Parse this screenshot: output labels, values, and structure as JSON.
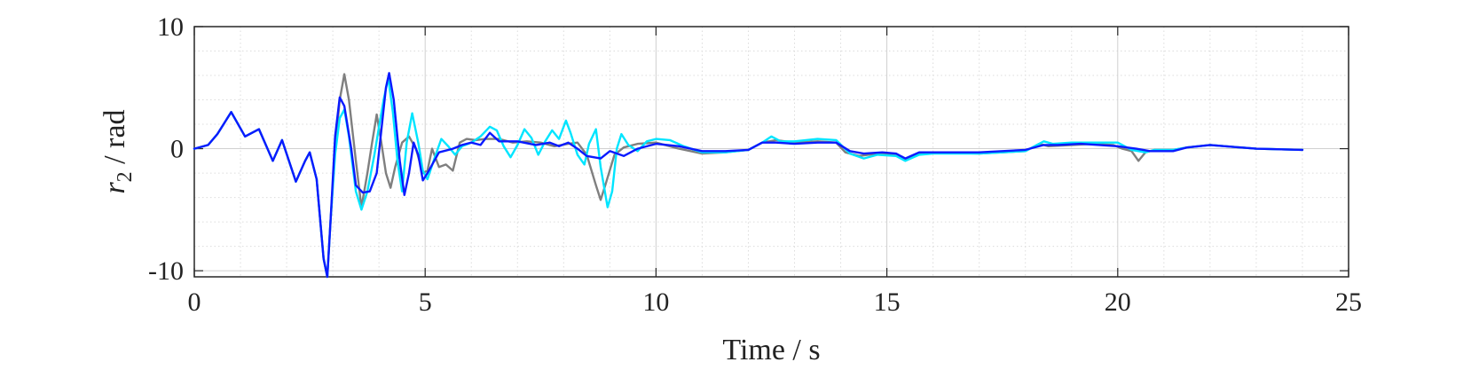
{
  "chart_data": {
    "type": "line",
    "xlabel": "Time / s",
    "ylabel": {
      "symbol": "r",
      "subscript": "2",
      "unit": " / rad"
    },
    "xlim": [
      0,
      25
    ],
    "ylim": [
      -10.5,
      10
    ],
    "xticks": [
      0,
      5,
      10,
      15,
      20,
      25
    ],
    "xtick_labels": [
      "0",
      "5",
      "10",
      "15",
      "20",
      "25"
    ],
    "yticks": [
      -10,
      0,
      10
    ],
    "ytick_labels": [
      "-10",
      "0",
      "10"
    ],
    "grid": true,
    "minor_grid": true,
    "series": [
      {
        "color": "#7f7f7f",
        "points": [
          [
            0,
            0
          ],
          [
            0.3,
            0.3
          ],
          [
            0.5,
            1.2
          ],
          [
            0.8,
            3.0
          ],
          [
            1.1,
            1.0
          ],
          [
            1.4,
            1.6
          ],
          [
            1.7,
            -1.0
          ],
          [
            1.9,
            0.7
          ],
          [
            2.2,
            -2.7
          ],
          [
            2.4,
            -1.0
          ],
          [
            2.5,
            -0.3
          ],
          [
            2.65,
            -2.5
          ],
          [
            2.8,
            -9.0
          ],
          [
            2.88,
            -10.5
          ],
          [
            2.95,
            -6.0
          ],
          [
            3.05,
            0.0
          ],
          [
            3.15,
            4.0
          ],
          [
            3.25,
            6.1
          ],
          [
            3.35,
            4.0
          ],
          [
            3.5,
            -1.0
          ],
          [
            3.62,
            -4.8
          ],
          [
            3.75,
            -2.0
          ],
          [
            3.85,
            0.5
          ],
          [
            3.95,
            2.8
          ],
          [
            4.05,
            0.5
          ],
          [
            4.15,
            -2.0
          ],
          [
            4.25,
            -3.2
          ],
          [
            4.35,
            -1.5
          ],
          [
            4.5,
            0.5
          ],
          [
            4.65,
            1.0
          ],
          [
            4.8,
            0.0
          ],
          [
            4.95,
            -2.0
          ],
          [
            5.05,
            -1.8
          ],
          [
            5.15,
            0.0
          ],
          [
            5.3,
            -1.5
          ],
          [
            5.45,
            -1.3
          ],
          [
            5.6,
            -1.8
          ],
          [
            5.75,
            0.5
          ],
          [
            5.9,
            0.8
          ],
          [
            6.1,
            0.7
          ],
          [
            6.3,
            0.8
          ],
          [
            6.6,
            0.8
          ],
          [
            6.9,
            0.5
          ],
          [
            7.2,
            0.6
          ],
          [
            7.5,
            0.5
          ],
          [
            7.8,
            0.2
          ],
          [
            8.1,
            0.4
          ],
          [
            8.3,
            0.5
          ],
          [
            8.5,
            -0.5
          ],
          [
            8.7,
            -3.0
          ],
          [
            8.8,
            -4.2
          ],
          [
            8.9,
            -3.0
          ],
          [
            9.1,
            -0.5
          ],
          [
            9.3,
            0.1
          ],
          [
            9.6,
            0.4
          ],
          [
            10,
            0.5
          ],
          [
            10.5,
            0.0
          ],
          [
            11,
            -0.4
          ],
          [
            11.5,
            -0.3
          ],
          [
            12,
            -0.1
          ],
          [
            12.3,
            0.5
          ],
          [
            12.6,
            0.7
          ],
          [
            13,
            0.5
          ],
          [
            13.5,
            0.6
          ],
          [
            13.9,
            0.5
          ],
          [
            14.1,
            -0.3
          ],
          [
            14.4,
            -0.6
          ],
          [
            14.8,
            -0.4
          ],
          [
            15.2,
            -0.5
          ],
          [
            15.4,
            -0.9
          ],
          [
            15.7,
            -0.4
          ],
          [
            16,
            -0.3
          ],
          [
            17,
            -0.4
          ],
          [
            18,
            -0.2
          ],
          [
            18.3,
            0.4
          ],
          [
            18.5,
            0.2
          ],
          [
            19,
            0.3
          ],
          [
            19.5,
            0.4
          ],
          [
            19.9,
            0.3
          ],
          [
            20.1,
            0.0
          ],
          [
            20.3,
            -0.2
          ],
          [
            20.45,
            -1.0
          ],
          [
            20.6,
            -0.3
          ],
          [
            20.8,
            -0.1
          ],
          [
            21.2,
            -0.1
          ],
          [
            21.5,
            0.1
          ],
          [
            22,
            0.3
          ],
          [
            23,
            0.0
          ],
          [
            24,
            -0.1
          ]
        ]
      },
      {
        "color": "#00e5ff",
        "points": [
          [
            0,
            0
          ],
          [
            0.3,
            0.3
          ],
          [
            0.5,
            1.2
          ],
          [
            0.8,
            3.0
          ],
          [
            1.1,
            1.0
          ],
          [
            1.4,
            1.6
          ],
          [
            1.7,
            -1.0
          ],
          [
            1.9,
            0.7
          ],
          [
            2.2,
            -2.7
          ],
          [
            2.4,
            -1.0
          ],
          [
            2.5,
            -0.3
          ],
          [
            2.65,
            -2.5
          ],
          [
            2.8,
            -9.0
          ],
          [
            2.88,
            -10.5
          ],
          [
            2.95,
            -6.0
          ],
          [
            3.05,
            -0.5
          ],
          [
            3.15,
            2.5
          ],
          [
            3.25,
            3.2
          ],
          [
            3.35,
            1.0
          ],
          [
            3.5,
            -3.5
          ],
          [
            3.62,
            -5.0
          ],
          [
            3.75,
            -3.5
          ],
          [
            3.9,
            -0.5
          ],
          [
            4.0,
            1.8
          ],
          [
            4.1,
            4.0
          ],
          [
            4.2,
            5.8
          ],
          [
            4.3,
            3.0
          ],
          [
            4.4,
            -1.0
          ],
          [
            4.5,
            -3.5
          ],
          [
            4.6,
            0.5
          ],
          [
            4.72,
            2.9
          ],
          [
            4.85,
            0.5
          ],
          [
            4.95,
            -1.8
          ],
          [
            5.05,
            -2.5
          ],
          [
            5.2,
            -0.8
          ],
          [
            5.35,
            0.8
          ],
          [
            5.5,
            0.2
          ],
          [
            5.65,
            -0.5
          ],
          [
            5.8,
            0.2
          ],
          [
            6.0,
            0.5
          ],
          [
            6.2,
            1.0
          ],
          [
            6.4,
            1.8
          ],
          [
            6.55,
            1.5
          ],
          [
            6.7,
            0.2
          ],
          [
            6.85,
            -0.7
          ],
          [
            7.0,
            0.3
          ],
          [
            7.15,
            1.6
          ],
          [
            7.3,
            0.9
          ],
          [
            7.45,
            -0.5
          ],
          [
            7.6,
            0.6
          ],
          [
            7.75,
            1.5
          ],
          [
            7.9,
            0.8
          ],
          [
            8.05,
            2.3
          ],
          [
            8.15,
            1.3
          ],
          [
            8.3,
            -0.5
          ],
          [
            8.45,
            -1.3
          ],
          [
            8.55,
            0.4
          ],
          [
            8.7,
            1.6
          ],
          [
            8.8,
            -1.5
          ],
          [
            8.95,
            -4.8
          ],
          [
            9.05,
            -3.5
          ],
          [
            9.15,
            0.0
          ],
          [
            9.25,
            1.2
          ],
          [
            9.4,
            0.3
          ],
          [
            9.6,
            -0.2
          ],
          [
            9.8,
            0.6
          ],
          [
            10,
            0.8
          ],
          [
            10.3,
            0.7
          ],
          [
            10.6,
            0.2
          ],
          [
            11,
            -0.3
          ],
          [
            11.5,
            -0.3
          ],
          [
            12,
            -0.1
          ],
          [
            12.3,
            0.5
          ],
          [
            12.5,
            1.0
          ],
          [
            12.7,
            0.6
          ],
          [
            13,
            0.6
          ],
          [
            13.5,
            0.8
          ],
          [
            13.9,
            0.7
          ],
          [
            14.2,
            -0.4
          ],
          [
            14.5,
            -0.8
          ],
          [
            14.8,
            -0.5
          ],
          [
            15.2,
            -0.6
          ],
          [
            15.4,
            -1.0
          ],
          [
            15.7,
            -0.5
          ],
          [
            16,
            -0.4
          ],
          [
            17,
            -0.4
          ],
          [
            18,
            -0.2
          ],
          [
            18.4,
            0.6
          ],
          [
            18.6,
            0.4
          ],
          [
            19,
            0.5
          ],
          [
            19.5,
            0.5
          ],
          [
            20,
            0.5
          ],
          [
            20.3,
            -0.1
          ],
          [
            20.6,
            -0.3
          ],
          [
            20.8,
            -0.1
          ],
          [
            21.2,
            -0.1
          ],
          [
            21.5,
            0.1
          ],
          [
            22,
            0.3
          ],
          [
            23,
            0.0
          ],
          [
            24,
            -0.1
          ]
        ]
      },
      {
        "color": "#0a1aff",
        "points": [
          [
            0,
            0
          ],
          [
            0.3,
            0.3
          ],
          [
            0.5,
            1.2
          ],
          [
            0.8,
            3.0
          ],
          [
            1.1,
            1.0
          ],
          [
            1.4,
            1.6
          ],
          [
            1.7,
            -1.0
          ],
          [
            1.9,
            0.7
          ],
          [
            2.2,
            -2.7
          ],
          [
            2.4,
            -1.0
          ],
          [
            2.5,
            -0.3
          ],
          [
            2.65,
            -2.5
          ],
          [
            2.8,
            -9.0
          ],
          [
            2.88,
            -10.5
          ],
          [
            2.95,
            -6.0
          ],
          [
            3.05,
            1.0
          ],
          [
            3.15,
            4.2
          ],
          [
            3.25,
            3.5
          ],
          [
            3.4,
            0.0
          ],
          [
            3.5,
            -3.0
          ],
          [
            3.65,
            -3.6
          ],
          [
            3.8,
            -3.5
          ],
          [
            3.95,
            -2.0
          ],
          [
            4.05,
            1.5
          ],
          [
            4.15,
            5.0
          ],
          [
            4.22,
            6.2
          ],
          [
            4.32,
            4.0
          ],
          [
            4.45,
            -1.0
          ],
          [
            4.55,
            -3.8
          ],
          [
            4.65,
            -2.0
          ],
          [
            4.75,
            0.5
          ],
          [
            4.85,
            -0.5
          ],
          [
            4.95,
            -2.6
          ],
          [
            5.05,
            -2.0
          ],
          [
            5.3,
            -0.3
          ],
          [
            5.6,
            0.0
          ],
          [
            5.8,
            0.3
          ],
          [
            6.0,
            0.5
          ],
          [
            6.2,
            0.3
          ],
          [
            6.4,
            1.3
          ],
          [
            6.6,
            0.6
          ],
          [
            7.0,
            0.6
          ],
          [
            7.4,
            0.3
          ],
          [
            7.7,
            0.5
          ],
          [
            7.9,
            0.2
          ],
          [
            8.1,
            0.5
          ],
          [
            8.3,
            0.0
          ],
          [
            8.5,
            -0.6
          ],
          [
            8.8,
            -0.8
          ],
          [
            9.0,
            -0.2
          ],
          [
            9.3,
            -0.6
          ],
          [
            9.6,
            0.0
          ],
          [
            10,
            0.4
          ],
          [
            10.5,
            0.2
          ],
          [
            11,
            -0.2
          ],
          [
            11.5,
            -0.2
          ],
          [
            12,
            -0.1
          ],
          [
            12.3,
            0.5
          ],
          [
            12.6,
            0.5
          ],
          [
            13,
            0.4
          ],
          [
            13.5,
            0.5
          ],
          [
            13.9,
            0.5
          ],
          [
            14.2,
            -0.2
          ],
          [
            14.5,
            -0.4
          ],
          [
            14.9,
            -0.3
          ],
          [
            15.2,
            -0.4
          ],
          [
            15.4,
            -0.8
          ],
          [
            15.7,
            -0.3
          ],
          [
            16,
            -0.3
          ],
          [
            17,
            -0.3
          ],
          [
            18,
            -0.1
          ],
          [
            18.4,
            0.3
          ],
          [
            18.7,
            0.3
          ],
          [
            19.2,
            0.4
          ],
          [
            19.6,
            0.3
          ],
          [
            20,
            0.2
          ],
          [
            20.4,
            0.0
          ],
          [
            20.7,
            -0.2
          ],
          [
            21.2,
            -0.2
          ],
          [
            21.5,
            0.1
          ],
          [
            22,
            0.3
          ],
          [
            23,
            0.0
          ],
          [
            24,
            -0.1
          ]
        ]
      }
    ]
  }
}
